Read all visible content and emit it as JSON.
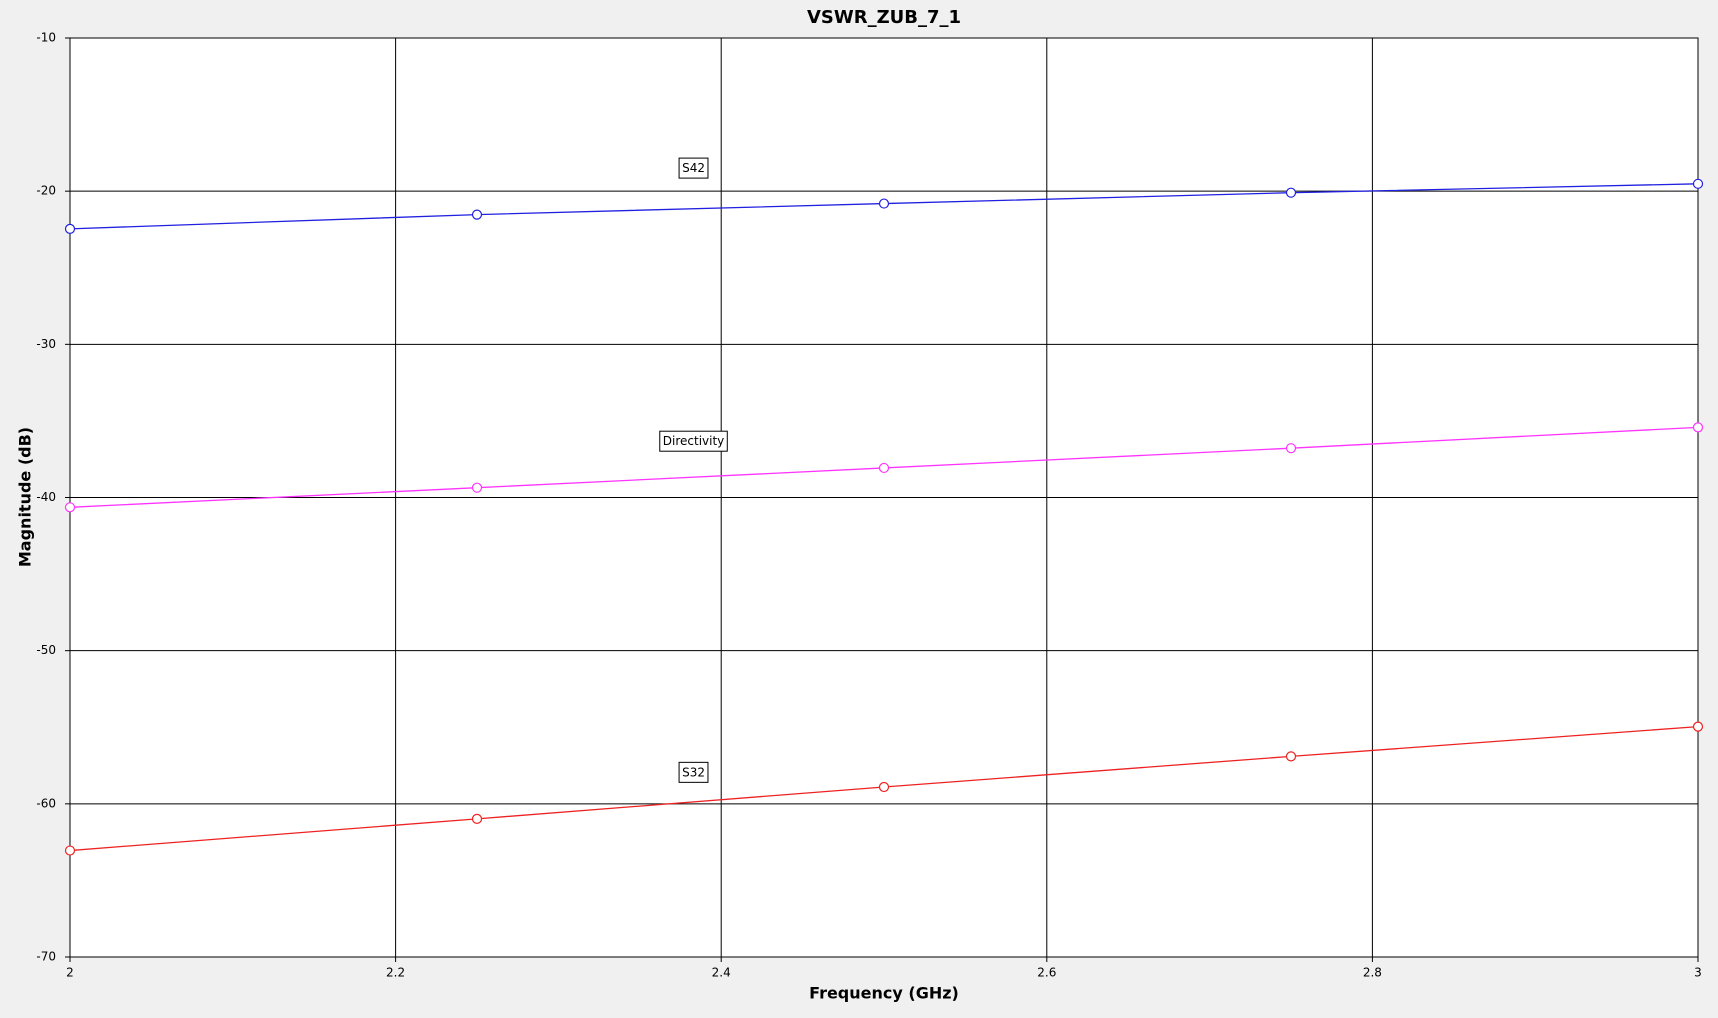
{
  "chart_data": {
    "type": "line",
    "title": "VSWR_ZUB_7_1",
    "x_label": "Frequency (GHz)",
    "y_label": "Magnitude (dB)",
    "x": [
      2,
      2.25,
      2.5,
      2.75,
      3
    ],
    "series": [
      {
        "name": "S42",
        "color": "#2020e0",
        "values": [
          -22.46,
          -21.53,
          -20.81,
          -20.1,
          -19.52
        ]
      },
      {
        "name": "Directivity",
        "color": "#ff33ff",
        "values": [
          -40.64,
          -39.36,
          -38.07,
          -36.78,
          -35.42
        ]
      },
      {
        "name": "S32",
        "color": "#ee2222",
        "values": [
          -63.05,
          -60.98,
          -58.9,
          -56.9,
          -54.96
        ]
      }
    ],
    "xlim": [
      2,
      3
    ],
    "xticks": [
      2,
      2.2,
      2.4,
      2.6,
      2.8,
      3
    ],
    "ylim": [
      -70,
      -10
    ],
    "yticks": [
      -70,
      -60,
      -50,
      -40,
      -30,
      -20,
      -10
    ],
    "grid": true
  }
}
